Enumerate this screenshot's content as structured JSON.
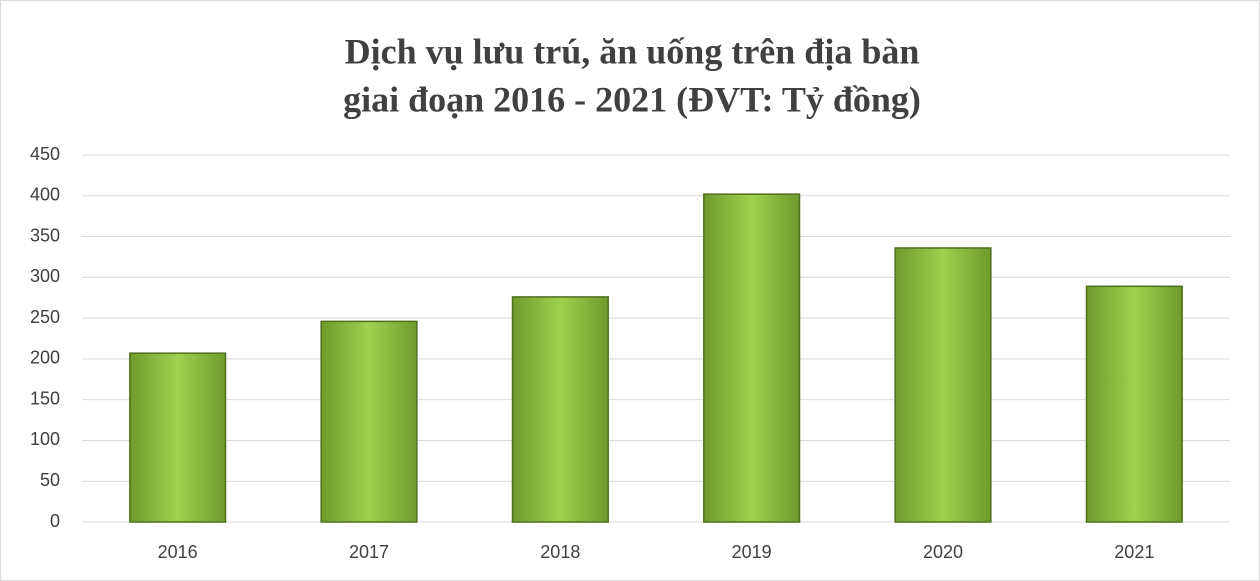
{
  "chart_data": {
    "type": "bar",
    "title": [
      "Dịch vụ lưu trú, ăn uống trên địa bàn",
      "giai đoạn 2016 - 2021 (ĐVT: Tỷ đồng)"
    ],
    "categories": [
      "2016",
      "2017",
      "2018",
      "2019",
      "2020",
      "2021"
    ],
    "values": [
      207,
      246,
      276,
      402,
      336,
      289
    ],
    "color": "#8dc63f",
    "ylim": [
      0,
      450
    ],
    "yticks": [
      0,
      50,
      100,
      150,
      200,
      250,
      300,
      350,
      400,
      450
    ],
    "grid": true
  }
}
